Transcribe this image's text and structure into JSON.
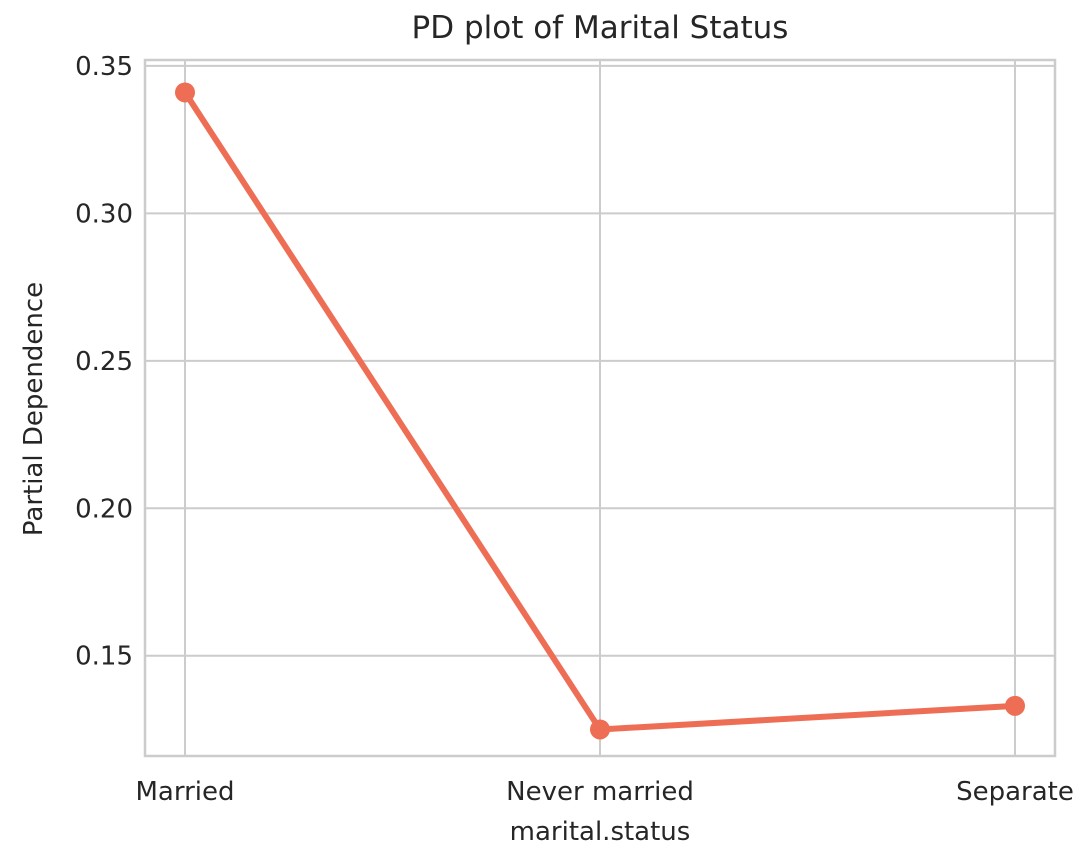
{
  "chart_data": {
    "type": "line",
    "title": "PD plot of Marital Status",
    "xlabel": "marital.status",
    "ylabel": "Partial Dependence",
    "categories": [
      "Married",
      "Never married",
      "Separate"
    ],
    "series": [
      {
        "values": [
          0.341,
          0.125,
          0.133
        ]
      }
    ],
    "ylim": [
      0.116,
      0.352
    ],
    "yticks": [
      0.15,
      0.2,
      0.25,
      0.3,
      0.35
    ],
    "ytick_labels": [
      "0.15",
      "0.20",
      "0.25",
      "0.30",
      "0.35"
    ],
    "grid": true,
    "line_color": "#ee6e55",
    "grid_color": "#cccccc",
    "text_color": "#262626"
  }
}
